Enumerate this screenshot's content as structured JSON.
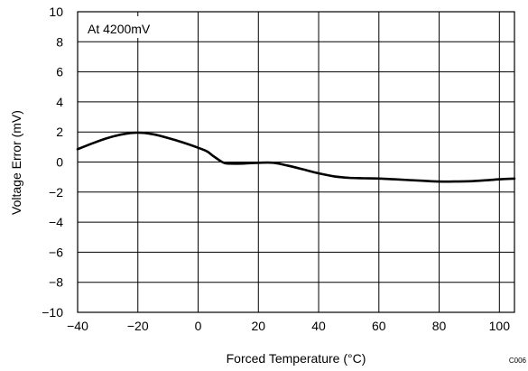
{
  "chart_data": {
    "type": "line",
    "title": "",
    "xlabel": "Forced Temperature (°C)",
    "ylabel": "Voltage Error (mV)",
    "xlim": [
      -40,
      105
    ],
    "ylim": [
      -10,
      10
    ],
    "x_ticks": [
      -40,
      -20,
      0,
      20,
      40,
      60,
      80,
      100
    ],
    "y_ticks": [
      -10,
      -8,
      -6,
      -4,
      -2,
      0,
      2,
      4,
      6,
      8,
      10
    ],
    "x_tick_labels": [
      "−40",
      "−20",
      "0",
      "20",
      "40",
      "60",
      "80",
      "100"
    ],
    "y_tick_labels": [
      "−10",
      "−8",
      "−6",
      "−4",
      "−2",
      "0",
      "2",
      "4",
      "6",
      "8",
      "10"
    ],
    "grid": true,
    "annotation": "At 4200mV",
    "figure_code": "C006",
    "series": [
      {
        "x": [
          -40,
          -35,
          -30,
          -25,
          -20,
          -15,
          -10,
          -5,
          0,
          3,
          5,
          8,
          10,
          15,
          20,
          25,
          30,
          35,
          40,
          45,
          50,
          55,
          60,
          65,
          70,
          75,
          80,
          85,
          90,
          95,
          100,
          105
        ],
        "y": [
          0.85,
          1.25,
          1.6,
          1.85,
          1.95,
          1.85,
          1.6,
          1.3,
          0.95,
          0.7,
          0.4,
          0.0,
          -0.1,
          -0.1,
          -0.05,
          -0.05,
          -0.25,
          -0.5,
          -0.75,
          -0.95,
          -1.05,
          -1.08,
          -1.1,
          -1.15,
          -1.2,
          -1.25,
          -1.3,
          -1.3,
          -1.28,
          -1.22,
          -1.15,
          -1.1
        ]
      }
    ]
  }
}
